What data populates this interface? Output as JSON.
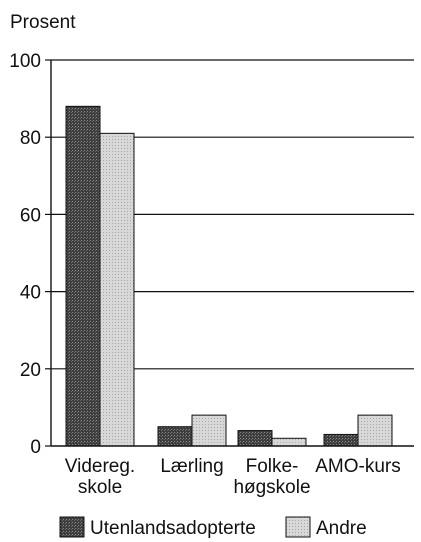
{
  "chart_data": {
    "type": "bar",
    "ylabel": "Prosent",
    "xlabel": "",
    "ylim": [
      0,
      100
    ],
    "yticks": [
      0,
      20,
      40,
      60,
      80,
      100
    ],
    "grid": true,
    "legend": "bottom",
    "categories": [
      [
        "Videreg.",
        "skole"
      ],
      [
        "Lærling"
      ],
      [
        "Folke-",
        "høgskole"
      ],
      [
        "AMO-kurs"
      ]
    ],
    "series": [
      {
        "name": "Utenlandsadopterte",
        "color": "#555555",
        "values": [
          88,
          5,
          4,
          3
        ]
      },
      {
        "name": "Andre",
        "color": "#d4d4d4",
        "values": [
          81,
          8,
          2,
          8
        ]
      }
    ]
  }
}
